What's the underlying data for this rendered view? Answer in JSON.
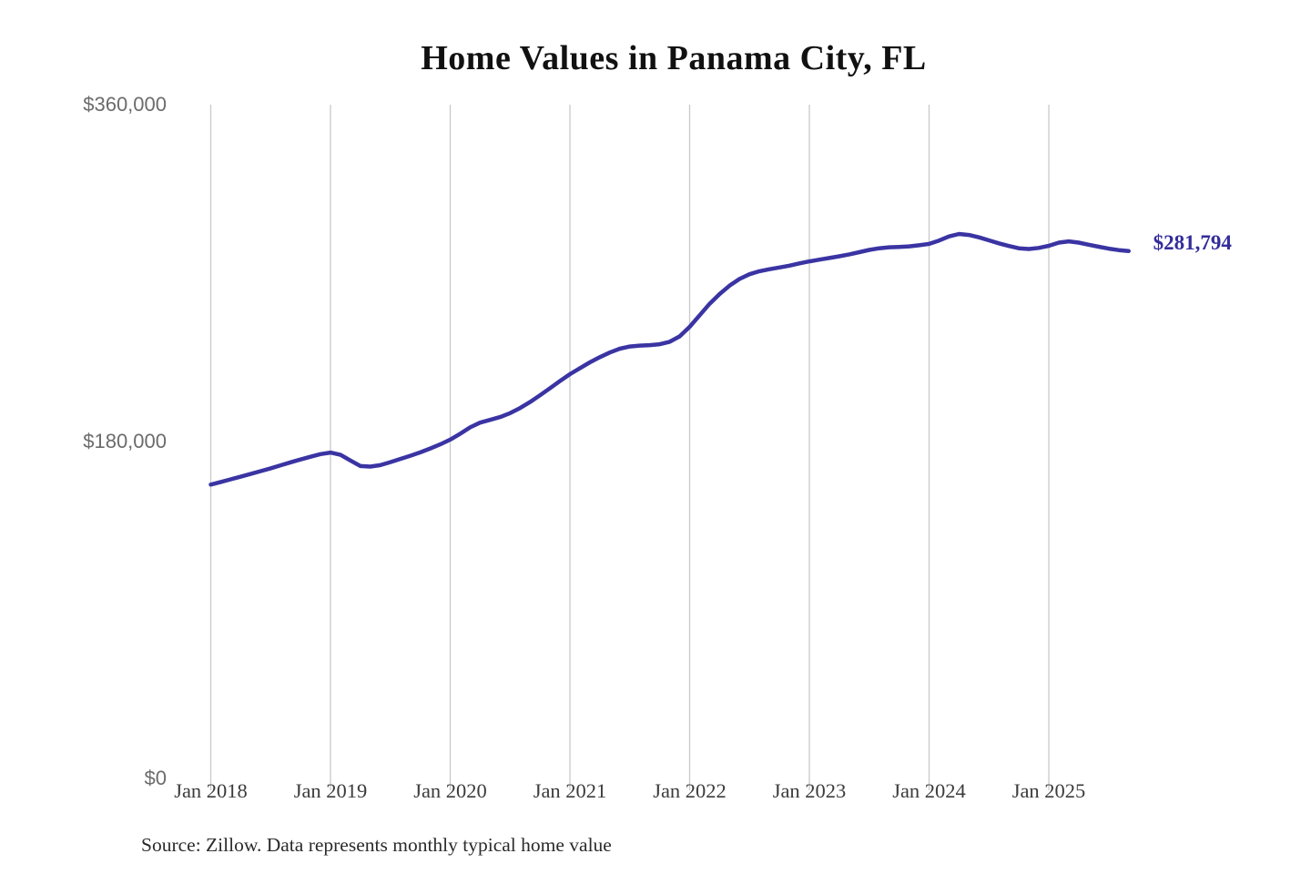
{
  "chart_data": {
    "type": "line",
    "title": "Home Values in Panama City, FL",
    "xlabel": "",
    "ylabel": "",
    "ylim": [
      0,
      360000
    ],
    "grid": "vertical-only",
    "legend": "none",
    "grid_color": "#c9c9c9",
    "y_ticks": [
      {
        "value": 0,
        "label": "$0"
      },
      {
        "value": 180000,
        "label": "$180,000"
      },
      {
        "value": 360000,
        "label": "$360,000"
      }
    ],
    "x_ticks": [
      "Jan 2018",
      "Jan 2019",
      "Jan 2020",
      "Jan 2021",
      "Jan 2022",
      "Jan 2023",
      "Jan 2024",
      "Jan 2025"
    ],
    "last_value_label": "$281,794",
    "series": [
      {
        "name": "Monthly typical home value",
        "color": "#3a34a3",
        "x": [
          "2018-01",
          "2018-02",
          "2018-03",
          "2018-04",
          "2018-05",
          "2018-06",
          "2018-07",
          "2018-08",
          "2018-09",
          "2018-10",
          "2018-11",
          "2018-12",
          "2019-01",
          "2019-02",
          "2019-03",
          "2019-04",
          "2019-05",
          "2019-06",
          "2019-07",
          "2019-08",
          "2019-09",
          "2019-10",
          "2019-11",
          "2019-12",
          "2020-01",
          "2020-02",
          "2020-03",
          "2020-04",
          "2020-05",
          "2020-06",
          "2020-07",
          "2020-08",
          "2020-09",
          "2020-10",
          "2020-11",
          "2020-12",
          "2021-01",
          "2021-02",
          "2021-03",
          "2021-04",
          "2021-05",
          "2021-06",
          "2021-07",
          "2021-08",
          "2021-09",
          "2021-10",
          "2021-11",
          "2021-12",
          "2022-01",
          "2022-02",
          "2022-03",
          "2022-04",
          "2022-05",
          "2022-06",
          "2022-07",
          "2022-08",
          "2022-09",
          "2022-10",
          "2022-11",
          "2022-12",
          "2023-01",
          "2023-02",
          "2023-03",
          "2023-04",
          "2023-05",
          "2023-06",
          "2023-07",
          "2023-08",
          "2023-09",
          "2023-10",
          "2023-11",
          "2023-12",
          "2024-01",
          "2024-02",
          "2024-03",
          "2024-04",
          "2024-05",
          "2024-06",
          "2024-07",
          "2024-08",
          "2024-09",
          "2024-10",
          "2024-11",
          "2024-12",
          "2025-01",
          "2025-02",
          "2025-03",
          "2025-04",
          "2025-05",
          "2025-06",
          "2025-07",
          "2025-08",
          "2025-09"
        ],
        "values": [
          157000,
          158400,
          159800,
          161200,
          162700,
          164200,
          165700,
          167300,
          168900,
          170400,
          171900,
          173300,
          174100,
          172900,
          169900,
          166900,
          166600,
          167400,
          169000,
          170700,
          172400,
          174200,
          176300,
          178500,
          181000,
          184200,
          187600,
          190100,
          191600,
          193100,
          195200,
          197900,
          201100,
          204700,
          208500,
          212300,
          216000,
          219200,
          222300,
          225100,
          227600,
          229600,
          230800,
          231300,
          231500,
          232000,
          233300,
          236200,
          241300,
          247500,
          253600,
          258800,
          263300,
          266900,
          269400,
          271000,
          272100,
          273000,
          274000,
          275200,
          276300,
          277200,
          278100,
          279000,
          280000,
          281200,
          282400,
          283300,
          283800,
          284000,
          284300,
          284900,
          285600,
          287400,
          289600,
          290900,
          290400,
          289100,
          287500,
          285900,
          284500,
          283300,
          282900,
          283500,
          284600,
          286300,
          287000,
          286300,
          285200,
          284100,
          283100,
          282300,
          281794
        ]
      }
    ]
  },
  "footer": {
    "source_note": "Source: Zillow. Data represents monthly typical home value"
  }
}
